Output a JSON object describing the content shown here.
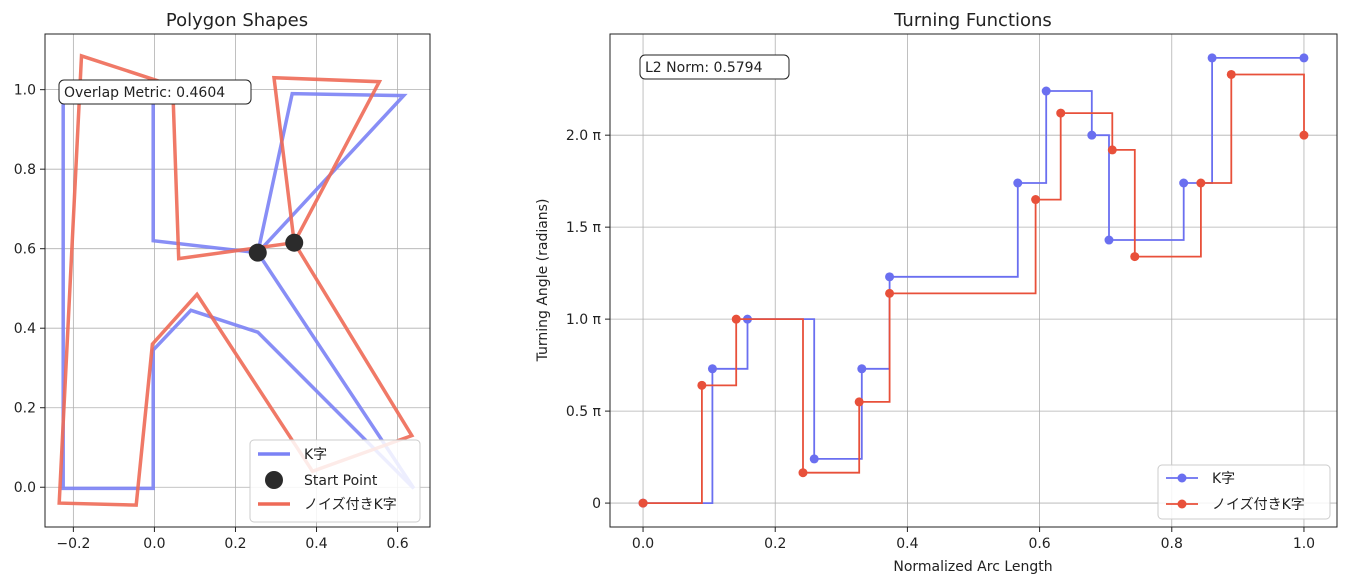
{
  "chart_data": [
    {
      "type": "line",
      "title": "Polygon Shapes",
      "xlim": [
        -0.27,
        0.68
      ],
      "ylim": [
        -0.1,
        1.14
      ],
      "xticks": [
        -0.2,
        0.0,
        0.2,
        0.4,
        0.6
      ],
      "xtick_labels": [
        "−0.2",
        "0.0",
        "0.2",
        "0.4",
        "0.6"
      ],
      "yticks": [
        0.0,
        0.2,
        0.4,
        0.6,
        0.8,
        1.0
      ],
      "ytick_labels": [
        "0.0",
        "0.2",
        "0.4",
        "0.6",
        "0.8",
        "1.0"
      ],
      "grid": true,
      "annotation": "Overlap Metric: 0.4604",
      "legend_position": "lower-right",
      "series": [
        {
          "name": "K字",
          "color": "#7b82f5",
          "points": [
            [
              0.255,
              0.59
            ],
            [
              0.34,
              0.99
            ],
            [
              0.615,
              0.985
            ],
            [
              0.255,
              0.59
            ],
            [
              0.64,
              -0.003
            ],
            [
              0.255,
              0.39
            ],
            [
              0.09,
              0.445
            ],
            [
              -0.003,
              0.345
            ],
            [
              -0.003,
              -0.003
            ],
            [
              -0.225,
              -0.003
            ],
            [
              -0.225,
              1.0
            ],
            [
              -0.003,
              1.0
            ],
            [
              -0.003,
              0.62
            ],
            [
              0.255,
              0.59
            ]
          ]
        },
        {
          "name": "Start Point",
          "color": "#2b2b2b",
          "marker": "circle",
          "points": [
            [
              0.255,
              0.59
            ],
            [
              0.345,
              0.615
            ]
          ]
        },
        {
          "name": "ノイズ付きK字",
          "color": "#ee6a57",
          "points": [
            [
              0.345,
              0.615
            ],
            [
              0.295,
              1.03
            ],
            [
              0.555,
              1.02
            ],
            [
              0.345,
              0.615
            ],
            [
              0.635,
              0.13
            ],
            [
              0.39,
              0.04
            ],
            [
              0.105,
              0.485
            ],
            [
              -0.005,
              0.36
            ],
            [
              -0.045,
              -0.045
            ],
            [
              -0.235,
              -0.04
            ],
            [
              -0.18,
              1.085
            ],
            [
              0.045,
              1.01
            ],
            [
              0.06,
              0.575
            ],
            [
              0.345,
              0.615
            ]
          ]
        }
      ]
    },
    {
      "type": "line",
      "title": "Turning Functions",
      "xlabel": "Normalized Arc Length",
      "ylabel": "Turning Angle (radians)",
      "xlim": [
        -0.05,
        1.05
      ],
      "ylim": [
        -0.13,
        2.55
      ],
      "xticks": [
        0.0,
        0.2,
        0.4,
        0.6,
        0.8,
        1.0
      ],
      "xtick_labels": [
        "0.0",
        "0.2",
        "0.4",
        "0.6",
        "0.8",
        "1.0"
      ],
      "yticks": [
        0,
        0.5,
        1.0,
        1.5,
        2.0
      ],
      "ytick_labels": [
        "0",
        "0.5 π",
        "1.0 π",
        "1.5 π",
        "2.0 π"
      ],
      "y_units": "multiples of π",
      "grid": true,
      "annotation": "L2 Norm: 0.5794",
      "legend_position": "lower-right",
      "series": [
        {
          "name": "K字",
          "color": "#6a6ff0",
          "x": [
            0.0,
            0.105,
            0.158,
            0.259,
            0.331,
            0.373,
            0.567,
            0.61,
            0.679,
            0.705,
            0.818,
            0.861,
            1.0
          ],
          "y": [
            0.0,
            0.73,
            1.0,
            0.24,
            0.73,
            1.23,
            1.74,
            2.24,
            2.0,
            1.43,
            1.74,
            2.42,
            2.42
          ]
        },
        {
          "name": "ノイズ付きK字",
          "color": "#e8503a",
          "x": [
            0.0,
            0.089,
            0.141,
            0.242,
            0.327,
            0.373,
            0.594,
            0.632,
            0.71,
            0.744,
            0.844,
            0.89,
            1.0
          ],
          "y": [
            0.0,
            0.64,
            1.0,
            0.165,
            0.55,
            1.14,
            1.65,
            2.12,
            1.92,
            1.34,
            1.74,
            2.33,
            2.0
          ]
        }
      ]
    }
  ]
}
